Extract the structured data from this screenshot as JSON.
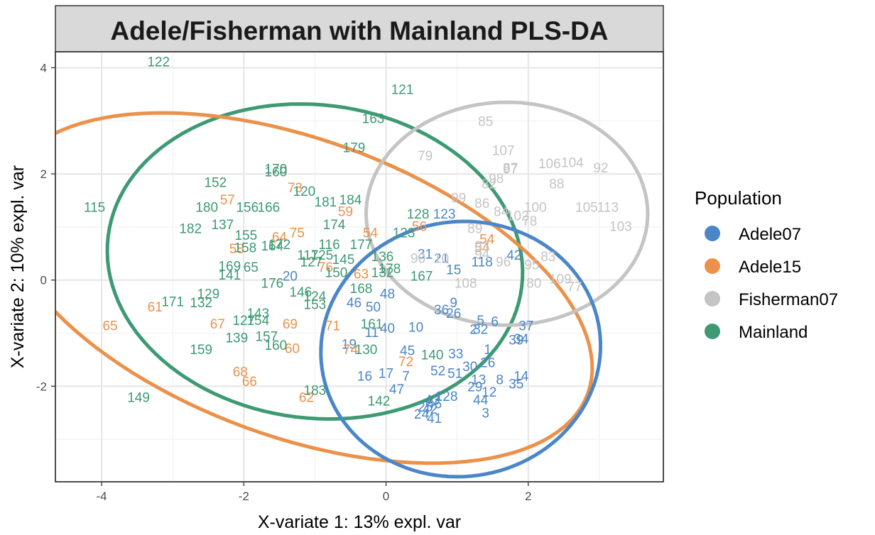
{
  "chart_data": {
    "type": "scatter",
    "title": "Adele/Fisherman with Mainland PLS-DA",
    "xlabel": "X-variate 1: 13% expl. var",
    "ylabel": "X-variate 2: 10% expl. var",
    "xlim": [
      -4.65,
      3.9
    ],
    "ylim": [
      -3.8,
      4.3
    ],
    "x_ticks": [
      -4,
      -2,
      0,
      2
    ],
    "y_ticks": [
      -2,
      0,
      2,
      4
    ],
    "x_tick_labels": [
      "-4",
      "-2",
      "0",
      "2"
    ],
    "y_tick_labels": [
      "-2",
      "0",
      "2",
      "4"
    ],
    "grid": true,
    "legend": {
      "title": "Population",
      "position": "right",
      "entries": [
        {
          "name": "Adele07",
          "color": "#4a86c8"
        },
        {
          "name": "Adele15",
          "color": "#eb914a"
        },
        {
          "name": "Fisherman07",
          "color": "#c4c4c4"
        },
        {
          "name": "Mainland",
          "color": "#3d9a73"
        }
      ]
    },
    "ellipses": [
      {
        "group": "Mainland",
        "cx": -1.0,
        "cy": 0.35,
        "rx": 2.93,
        "ry": 2.95,
        "angle": -7
      },
      {
        "group": "Adele15",
        "cx": -1.25,
        "cy": -0.15,
        "rx": 4.35,
        "ry": 2.8,
        "angle": -20
      },
      {
        "group": "Fisherman07",
        "cx": 1.7,
        "cy": 1.25,
        "rx": 1.98,
        "ry": 2.1,
        "angle": 0
      },
      {
        "group": "Adele07",
        "cx": 1.05,
        "cy": -1.3,
        "rx": 1.97,
        "ry": 2.4,
        "angle": 8
      }
    ],
    "series": [
      {
        "name": "Adele07",
        "color": "#4a86c8",
        "points": [
          {
            "label": "3",
            "x": 1.4,
            "y": -2.5
          },
          {
            "label": "44",
            "x": 1.33,
            "y": -2.25
          },
          {
            "label": "12",
            "x": 1.45,
            "y": -2.1
          },
          {
            "label": "29",
            "x": 1.25,
            "y": -2.0
          },
          {
            "label": "13",
            "x": 1.3,
            "y": -1.87
          },
          {
            "label": "8",
            "x": 1.6,
            "y": -1.87
          },
          {
            "label": "35",
            "x": 1.83,
            "y": -1.95
          },
          {
            "label": "14",
            "x": 1.9,
            "y": -1.8
          },
          {
            "label": "26",
            "x": 1.43,
            "y": -1.55
          },
          {
            "label": "30",
            "x": 1.18,
            "y": -1.62
          },
          {
            "label": "1",
            "x": 1.43,
            "y": -1.3
          },
          {
            "label": "33",
            "x": 0.98,
            "y": -1.38
          },
          {
            "label": "34",
            "x": 1.9,
            "y": -1.1
          },
          {
            "label": "39",
            "x": 1.83,
            "y": -1.12
          },
          {
            "label": "37",
            "x": 1.97,
            "y": -0.85
          },
          {
            "label": "2",
            "x": 1.23,
            "y": -0.92
          },
          {
            "label": "32",
            "x": 1.33,
            "y": -0.92
          },
          {
            "label": "6",
            "x": 1.53,
            "y": -0.77
          },
          {
            "label": "5",
            "x": 1.33,
            "y": -0.75
          },
          {
            "label": "9",
            "x": 0.95,
            "y": -0.42
          },
          {
            "label": "36",
            "x": 0.78,
            "y": -0.55
          },
          {
            "label": "26",
            "x": 0.95,
            "y": -0.62
          },
          {
            "label": "52",
            "x": 0.73,
            "y": -1.7
          },
          {
            "label": "51",
            "x": 0.97,
            "y": -1.75
          },
          {
            "label": "45",
            "x": 0.3,
            "y": -1.32
          },
          {
            "label": "17",
            "x": 0.0,
            "y": -1.75
          },
          {
            "label": "7",
            "x": 0.28,
            "y": -1.8
          },
          {
            "label": "16",
            "x": -0.3,
            "y": -1.8
          },
          {
            "label": "47",
            "x": 0.15,
            "y": -2.05
          },
          {
            "label": "128",
            "x": 0.85,
            "y": -2.18
          },
          {
            "label": "43",
            "x": 0.65,
            "y": -2.25
          },
          {
            "label": "46",
            "x": 0.68,
            "y": -2.32
          },
          {
            "label": "25",
            "x": 0.55,
            "y": -2.38
          },
          {
            "label": "42",
            "x": 0.62,
            "y": -2.42
          },
          {
            "label": "24",
            "x": 0.5,
            "y": -2.52
          },
          {
            "label": "41",
            "x": 0.68,
            "y": -2.6
          },
          {
            "label": "40",
            "x": 0.02,
            "y": -0.9
          },
          {
            "label": "10",
            "x": 0.42,
            "y": -0.88
          },
          {
            "label": "48",
            "x": 0.02,
            "y": -0.25
          },
          {
            "label": "46",
            "x": -0.45,
            "y": -0.42
          },
          {
            "label": "50",
            "x": -0.18,
            "y": -0.5
          },
          {
            "label": "11",
            "x": -0.2,
            "y": -0.98
          },
          {
            "label": "19",
            "x": -0.52,
            "y": -1.2
          },
          {
            "label": "15",
            "x": 0.95,
            "y": 0.2
          },
          {
            "label": "31",
            "x": 0.55,
            "y": 0.5
          },
          {
            "label": "21",
            "x": 0.78,
            "y": 0.42
          },
          {
            "label": "123",
            "x": 0.82,
            "y": 1.25
          },
          {
            "label": "20",
            "x": -1.35,
            "y": 0.08
          },
          {
            "label": "42",
            "x": 1.8,
            "y": 0.48
          },
          {
            "label": "118",
            "x": 1.35,
            "y": 0.35
          }
        ]
      },
      {
        "name": "Adele15",
        "color": "#eb914a",
        "points": [
          {
            "label": "65",
            "x": -3.88,
            "y": -0.85
          },
          {
            "label": "61",
            "x": -3.25,
            "y": -0.5
          },
          {
            "label": "67",
            "x": -2.37,
            "y": -0.82
          },
          {
            "label": "68",
            "x": -2.05,
            "y": -1.72
          },
          {
            "label": "66",
            "x": -1.92,
            "y": -1.9
          },
          {
            "label": "60",
            "x": -1.32,
            "y": -1.28
          },
          {
            "label": "69",
            "x": -1.35,
            "y": -0.82
          },
          {
            "label": "62",
            "x": -1.12,
            "y": -2.2
          },
          {
            "label": "71",
            "x": -0.75,
            "y": -0.85
          },
          {
            "label": "74",
            "x": -0.5,
            "y": -1.3
          },
          {
            "label": "72",
            "x": 0.28,
            "y": -1.53
          },
          {
            "label": "58",
            "x": -2.1,
            "y": 0.6
          },
          {
            "label": "57",
            "x": -2.23,
            "y": 1.52
          },
          {
            "label": "73",
            "x": -1.28,
            "y": 1.75
          },
          {
            "label": "64",
            "x": -1.5,
            "y": 0.82
          },
          {
            "label": "75",
            "x": -1.25,
            "y": 0.9
          },
          {
            "label": "59",
            "x": -0.57,
            "y": 1.3
          },
          {
            "label": "54",
            "x": -0.22,
            "y": 0.9
          },
          {
            "label": "56",
            "x": 0.47,
            "y": 1.02
          },
          {
            "label": "63",
            "x": -0.35,
            "y": 0.12
          },
          {
            "label": "76",
            "x": -0.85,
            "y": 0.25
          },
          {
            "label": "54",
            "x": 1.35,
            "y": 0.62
          },
          {
            "label": "54",
            "x": 1.42,
            "y": 0.78
          }
        ]
      },
      {
        "name": "Fisherman07",
        "color": "#c4c4c4",
        "points": [
          {
            "label": "85",
            "x": 1.4,
            "y": 3.0
          },
          {
            "label": "107",
            "x": 1.65,
            "y": 2.45
          },
          {
            "label": "79",
            "x": 0.55,
            "y": 2.35
          },
          {
            "label": "87",
            "x": 1.75,
            "y": 2.12
          },
          {
            "label": "97",
            "x": 1.75,
            "y": 2.1
          },
          {
            "label": "106",
            "x": 2.3,
            "y": 2.2
          },
          {
            "label": "104",
            "x": 2.62,
            "y": 2.22
          },
          {
            "label": "92",
            "x": 3.02,
            "y": 2.12
          },
          {
            "label": "98",
            "x": 1.55,
            "y": 1.92
          },
          {
            "label": "82",
            "x": 1.45,
            "y": 1.82
          },
          {
            "label": "88",
            "x": 2.4,
            "y": 1.82
          },
          {
            "label": "99",
            "x": 1.02,
            "y": 1.55
          },
          {
            "label": "86",
            "x": 1.35,
            "y": 1.45
          },
          {
            "label": "84",
            "x": 1.62,
            "y": 1.3
          },
          {
            "label": "100",
            "x": 2.1,
            "y": 1.38
          },
          {
            "label": "102",
            "x": 1.85,
            "y": 1.22
          },
          {
            "label": "78",
            "x": 2.02,
            "y": 1.12
          },
          {
            "label": "105",
            "x": 2.82,
            "y": 1.38
          },
          {
            "label": "113",
            "x": 3.12,
            "y": 1.38
          },
          {
            "label": "103",
            "x": 3.3,
            "y": 1.02
          },
          {
            "label": "90",
            "x": 0.45,
            "y": 0.42
          },
          {
            "label": "10",
            "x": 0.78,
            "y": 0.42
          },
          {
            "label": "89",
            "x": 1.25,
            "y": 0.98
          },
          {
            "label": "93",
            "x": 1.35,
            "y": 0.65
          },
          {
            "label": "94",
            "x": 1.35,
            "y": 0.5
          },
          {
            "label": "95",
            "x": 2.05,
            "y": 0.3
          },
          {
            "label": "83",
            "x": 2.28,
            "y": 0.45
          },
          {
            "label": "108",
            "x": 1.12,
            "y": -0.05
          },
          {
            "label": "109",
            "x": 2.45,
            "y": 0.03
          },
          {
            "label": "77",
            "x": 2.65,
            "y": -0.12
          },
          {
            "label": "80",
            "x": 2.08,
            "y": -0.05
          },
          {
            "label": "96",
            "x": 1.65,
            "y": 0.35
          }
        ]
      },
      {
        "name": "Mainland",
        "color": "#3d9a73",
        "points": [
          {
            "label": "122",
            "x": -3.2,
            "y": 4.12
          },
          {
            "label": "121",
            "x": 0.23,
            "y": 3.6
          },
          {
            "label": "163",
            "x": -0.18,
            "y": 3.05
          },
          {
            "label": "179",
            "x": -0.45,
            "y": 2.5
          },
          {
            "label": "170",
            "x": -1.55,
            "y": 2.1
          },
          {
            "label": "160",
            "x": -1.55,
            "y": 2.05
          },
          {
            "label": "152",
            "x": -2.4,
            "y": 1.85
          },
          {
            "label": "120",
            "x": -1.15,
            "y": 1.68
          },
          {
            "label": "181",
            "x": -0.85,
            "y": 1.48
          },
          {
            "label": "184",
            "x": -0.5,
            "y": 1.52
          },
          {
            "label": "115",
            "x": -4.1,
            "y": 1.38
          },
          {
            "label": "180",
            "x": -2.52,
            "y": 1.38
          },
          {
            "label": "156",
            "x": -1.95,
            "y": 1.38
          },
          {
            "label": "166",
            "x": -1.65,
            "y": 1.38
          },
          {
            "label": "182",
            "x": -2.75,
            "y": 0.98
          },
          {
            "label": "137",
            "x": -2.3,
            "y": 1.05
          },
          {
            "label": "174",
            "x": -0.73,
            "y": 1.05
          },
          {
            "label": "155",
            "x": -1.97,
            "y": 0.85
          },
          {
            "label": "158",
            "x": -1.98,
            "y": 0.62
          },
          {
            "label": "164",
            "x": -1.6,
            "y": 0.65
          },
          {
            "label": "172",
            "x": -1.5,
            "y": 0.68
          },
          {
            "label": "116",
            "x": -0.8,
            "y": 0.68
          },
          {
            "label": "117",
            "x": -1.1,
            "y": 0.48
          },
          {
            "label": "125",
            "x": -0.9,
            "y": 0.48
          },
          {
            "label": "127",
            "x": -1.05,
            "y": 0.35
          },
          {
            "label": "145",
            "x": -0.6,
            "y": 0.4
          },
          {
            "label": "177",
            "x": -0.35,
            "y": 0.68
          },
          {
            "label": "136",
            "x": -0.05,
            "y": 0.45
          },
          {
            "label": "178",
            "x": 0.05,
            "y": 0.22
          },
          {
            "label": "169",
            "x": -2.2,
            "y": 0.27
          },
          {
            "label": "65",
            "x": -1.9,
            "y": 0.25
          },
          {
            "label": "141",
            "x": -2.2,
            "y": 0.1
          },
          {
            "label": "176",
            "x": -1.6,
            "y": -0.05
          },
          {
            "label": "150",
            "x": -0.7,
            "y": 0.15
          },
          {
            "label": "132",
            "x": -0.05,
            "y": 0.15
          },
          {
            "label": "167",
            "x": 0.5,
            "y": 0.08
          },
          {
            "label": "128",
            "x": 0.45,
            "y": 1.25
          },
          {
            "label": "123",
            "x": 0.25,
            "y": 0.9
          },
          {
            "label": "168",
            "x": -0.35,
            "y": -0.15
          },
          {
            "label": "146",
            "x": -1.2,
            "y": -0.22
          },
          {
            "label": "124",
            "x": -1.0,
            "y": -0.3
          },
          {
            "label": "153",
            "x": -1.0,
            "y": -0.45
          },
          {
            "label": "171",
            "x": -3.0,
            "y": -0.4
          },
          {
            "label": "129",
            "x": -2.5,
            "y": -0.25
          },
          {
            "label": "132",
            "x": -2.6,
            "y": -0.42
          },
          {
            "label": "143",
            "x": -1.8,
            "y": -0.62
          },
          {
            "label": "127",
            "x": -2.0,
            "y": -0.75
          },
          {
            "label": "154",
            "x": -1.8,
            "y": -0.75
          },
          {
            "label": "139",
            "x": -2.1,
            "y": -1.08
          },
          {
            "label": "157",
            "x": -1.68,
            "y": -1.05
          },
          {
            "label": "160",
            "x": -1.55,
            "y": -1.22
          },
          {
            "label": "159",
            "x": -2.6,
            "y": -1.3
          },
          {
            "label": "161",
            "x": -0.2,
            "y": -0.82
          },
          {
            "label": "130",
            "x": -0.28,
            "y": -1.3
          },
          {
            "label": "140",
            "x": 0.65,
            "y": -1.4
          },
          {
            "label": "183",
            "x": -1.0,
            "y": -2.07
          },
          {
            "label": "142",
            "x": -0.1,
            "y": -2.27
          },
          {
            "label": "149",
            "x": -3.48,
            "y": -2.2
          }
        ]
      }
    ]
  }
}
